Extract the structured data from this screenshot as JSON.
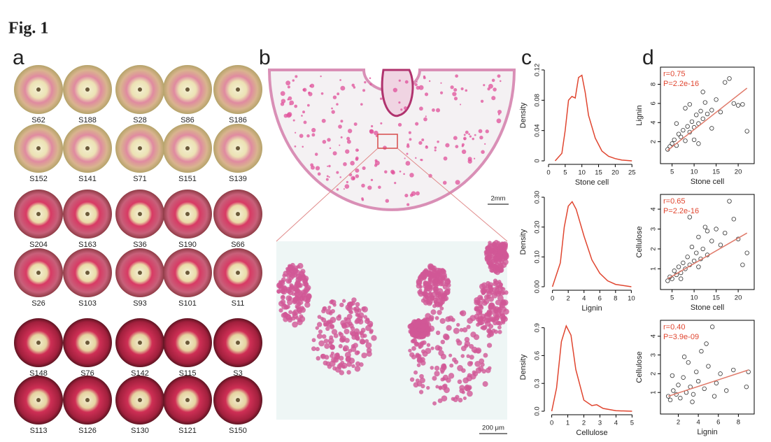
{
  "figure": {
    "title": "Fig. 1",
    "panel_labels": [
      "a",
      "b",
      "c",
      "d"
    ],
    "panel_a": {
      "samples": [
        "S62",
        "S188",
        "S28",
        "S86",
        "S186",
        "S152",
        "S141",
        "S71",
        "S151",
        "S139",
        "S204",
        "S163",
        "S36",
        "S190",
        "S66",
        "S26",
        "S103",
        "S93",
        "S101",
        "S11",
        "S148",
        "S76",
        "S142",
        "S115",
        "S3",
        "S113",
        "S126",
        "S130",
        "S121",
        "S150"
      ]
    },
    "panel_b": {
      "scale_overview": "2mm",
      "scale_zoom": "200 μm"
    }
  },
  "chart_data": [
    {
      "type": "line",
      "x_label": "Stone cell",
      "y_label": "Density",
      "color": "#e0452f",
      "x": [
        2,
        4,
        5,
        6,
        7,
        8,
        9,
        10,
        11,
        12,
        14,
        16,
        18,
        20,
        22,
        25
      ],
      "values": [
        0,
        0.01,
        0.04,
        0.08,
        0.085,
        0.083,
        0.11,
        0.113,
        0.09,
        0.06,
        0.03,
        0.013,
        0.006,
        0.003,
        0.001,
        0
      ],
      "xlim": [
        0,
        26
      ],
      "xticks": [
        0,
        5,
        10,
        15,
        20,
        25
      ],
      "ylim": [
        0,
        0.12
      ],
      "yticks": [
        0,
        0.04,
        0.08,
        0.12
      ]
    },
    {
      "type": "scatter",
      "x_label": "Stone cell",
      "y_label": "Lignin",
      "color": "#333333",
      "trend_color": "#e07a6a",
      "annotations": [
        "r=0.75",
        "P=2.2e-16"
      ],
      "annotation_color": "#e0452f",
      "x": [
        4,
        4.5,
        5,
        5.5,
        6,
        6.5,
        7,
        7.5,
        8,
        8.5,
        9,
        9.5,
        10,
        10.5,
        11,
        11.5,
        12,
        12.5,
        13,
        14,
        15,
        16,
        17,
        18,
        19,
        20,
        21,
        22,
        6,
        8,
        10,
        12,
        14,
        9,
        11
      ],
      "values": [
        1.2,
        1.5,
        1.8,
        2.2,
        1.6,
        2.8,
        2.5,
        3.2,
        2.1,
        3.6,
        3.0,
        4.1,
        3.5,
        4.8,
        3.9,
        5.2,
        4.4,
        6.1,
        4.9,
        5.3,
        6.4,
        5.1,
        8.2,
        8.6,
        6.0,
        5.8,
        5.9,
        3.1,
        3.9,
        5.5,
        2.2,
        7.2,
        3.4,
        5.9,
        1.8
      ],
      "trend": {
        "x": [
          4,
          22
        ],
        "values": [
          1.1,
          7.6
        ]
      },
      "xlim": [
        3,
        23
      ],
      "xticks": [
        5,
        10,
        15,
        20
      ],
      "ylim": [
        0,
        9.5
      ],
      "yticks": [
        2,
        4,
        6,
        8
      ]
    },
    {
      "type": "line",
      "x_label": "Lignin",
      "y_label": "Density",
      "color": "#e0452f",
      "x": [
        0,
        1,
        1.5,
        2,
        2.5,
        3,
        4,
        5,
        6,
        7,
        8,
        10
      ],
      "values": [
        0,
        0.08,
        0.2,
        0.27,
        0.285,
        0.26,
        0.17,
        0.09,
        0.045,
        0.02,
        0.008,
        0
      ],
      "xlim": [
        -0.5,
        10.5
      ],
      "xticks": [
        0,
        2,
        4,
        6,
        8,
        10
      ],
      "ylim": [
        0,
        0.3
      ],
      "yticks": [
        {
          "value": 0,
          "label": "0.00"
        },
        {
          "value": 0.1,
          "label": "0.10"
        },
        {
          "value": 0.2,
          "label": "0.20"
        },
        {
          "value": 0.3,
          "label": "0.30"
        }
      ]
    },
    {
      "type": "scatter",
      "x_label": "Stone cell",
      "y_label": "Cellulose",
      "color": "#333333",
      "trend_color": "#e07a6a",
      "annotations": [
        "r=0.65",
        "P=2.2e-16"
      ],
      "annotation_color": "#e0452f",
      "x": [
        4,
        4.5,
        5,
        5.5,
        6,
        6.5,
        7,
        7.5,
        8,
        8.5,
        9,
        9.5,
        10,
        10.5,
        11,
        11.5,
        12,
        12.5,
        13,
        14,
        15,
        16,
        17,
        18,
        19,
        20,
        21,
        22,
        7,
        9,
        11,
        13
      ],
      "values": [
        0.4,
        0.6,
        0.5,
        0.9,
        0.7,
        1.1,
        0.8,
        1.3,
        1.0,
        1.6,
        1.2,
        2.1,
        1.4,
        1.8,
        2.6,
        1.5,
        2.0,
        3.1,
        1.7,
        2.4,
        3.0,
        2.2,
        2.8,
        4.4,
        3.5,
        2.5,
        1.2,
        1.8,
        0.5,
        3.6,
        1.1,
        2.9
      ],
      "trend": {
        "x": [
          4,
          22
        ],
        "values": [
          0.5,
          2.8
        ]
      },
      "xlim": [
        3,
        23
      ],
      "xticks": [
        5,
        10,
        15,
        20
      ],
      "ylim": [
        0.1,
        4.6
      ],
      "yticks": [
        1,
        2,
        3,
        4
      ]
    },
    {
      "type": "line",
      "x_label": "Cellulose",
      "y_label": "Density",
      "color": "#e0452f",
      "x": [
        0,
        0.3,
        0.6,
        0.9,
        1.2,
        1.5,
        2,
        2.5,
        2.8,
        3.2,
        4,
        5
      ],
      "values": [
        0,
        0.25,
        0.75,
        0.92,
        0.82,
        0.45,
        0.12,
        0.06,
        0.07,
        0.03,
        0.005,
        0
      ],
      "xlim": [
        -0.2,
        5.2
      ],
      "xticks": [
        0,
        1,
        2,
        3,
        4,
        5
      ],
      "ylim": [
        0,
        0.95
      ],
      "yticks": [
        {
          "value": 0,
          "label": "0.0"
        },
        {
          "value": 0.3,
          "label": "0.3"
        },
        {
          "value": 0.6,
          "label": "0.6"
        },
        {
          "value": 0.9,
          "label": "0.9"
        }
      ]
    },
    {
      "type": "scatter",
      "x_label": "Lignin",
      "y_label": "Cellulose",
      "color": "#333333",
      "trend_color": "#e07a6a",
      "annotations": [
        "r=0.40",
        "P=3.9e-09"
      ],
      "annotation_color": "#e0452f",
      "x": [
        1,
        1.2,
        1.5,
        1.8,
        2,
        2.2,
        2.5,
        2.8,
        3,
        3.2,
        3.5,
        3.8,
        4,
        4.3,
        4.6,
        5,
        5.4,
        5.8,
        6.2,
        6.8,
        7.5,
        8.8,
        9,
        1.4,
        2.6,
        3.4,
        4.8,
        5.6
      ],
      "values": [
        0.8,
        0.6,
        1.1,
        0.9,
        1.4,
        0.7,
        1.8,
        1.0,
        2.6,
        1.3,
        0.9,
        2.1,
        1.6,
        3.2,
        1.2,
        2.4,
        4.5,
        1.5,
        2.0,
        1.1,
        2.2,
        1.3,
        2.1,
        1.9,
        2.9,
        0.5,
        3.6,
        0.8
      ],
      "trend": {
        "x": [
          1,
          9
        ],
        "values": [
          0.8,
          2.2
        ]
      },
      "xlim": [
        0.5,
        9.3
      ],
      "xticks": [
        2,
        4,
        6,
        8
      ],
      "ylim": [
        0,
        4.7
      ],
      "yticks": [
        1,
        2,
        3,
        4
      ]
    }
  ]
}
